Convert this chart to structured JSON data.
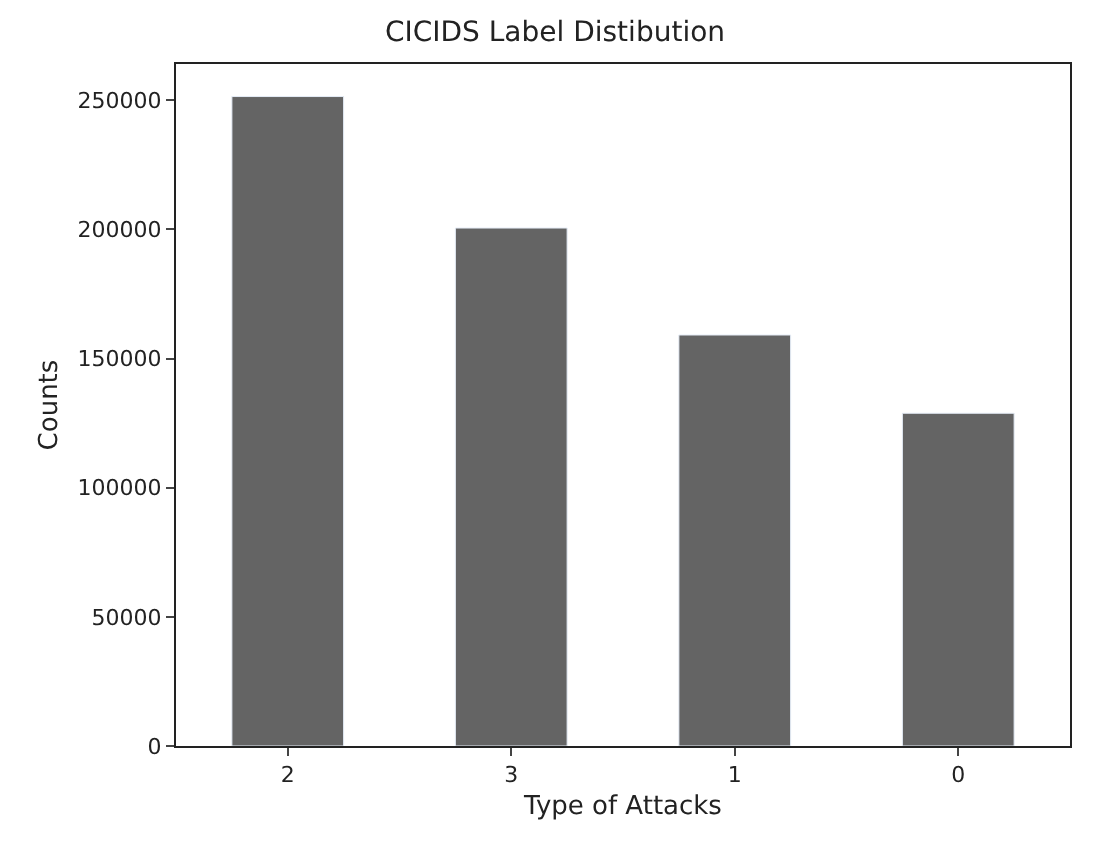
{
  "chart_data": {
    "type": "bar",
    "title": "CICIDS Label Distibution",
    "xlabel": "Type of Attacks",
    "ylabel": "Counts",
    "categories": [
      "2",
      "3",
      "1",
      "0"
    ],
    "values": [
      251400,
      200500,
      159100,
      128800
    ],
    "color": "#646464",
    "ylim": [
      0,
      264000
    ],
    "yticks": [
      0,
      50000,
      100000,
      150000,
      200000,
      250000
    ]
  }
}
